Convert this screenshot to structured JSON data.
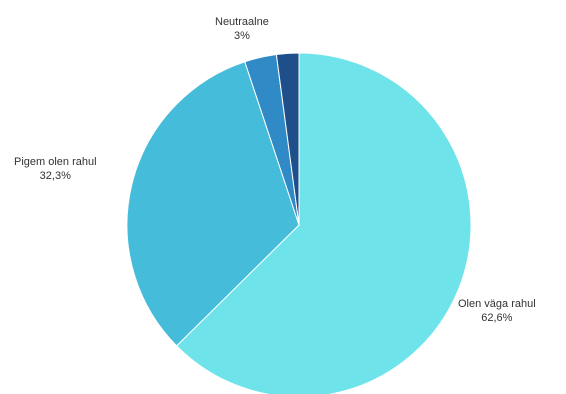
{
  "chart_data": {
    "type": "pie",
    "slices": [
      {
        "label": "Olen väga rahul",
        "value": 62.6,
        "value_label": "62,6%",
        "color": "#6ee3ea"
      },
      {
        "label": "Pigem olen rahul",
        "value": 32.3,
        "value_label": "32,3%",
        "color": "#45bcda"
      },
      {
        "label": "Neutraalne",
        "value": 3,
        "value_label": "3%",
        "color": "#2f8ac6"
      },
      {
        "label": "",
        "value": 2.1,
        "value_label": "",
        "color": "#1f4f8a"
      }
    ],
    "start": "12 o'clock",
    "direction": "clockwise",
    "legend": "none"
  }
}
